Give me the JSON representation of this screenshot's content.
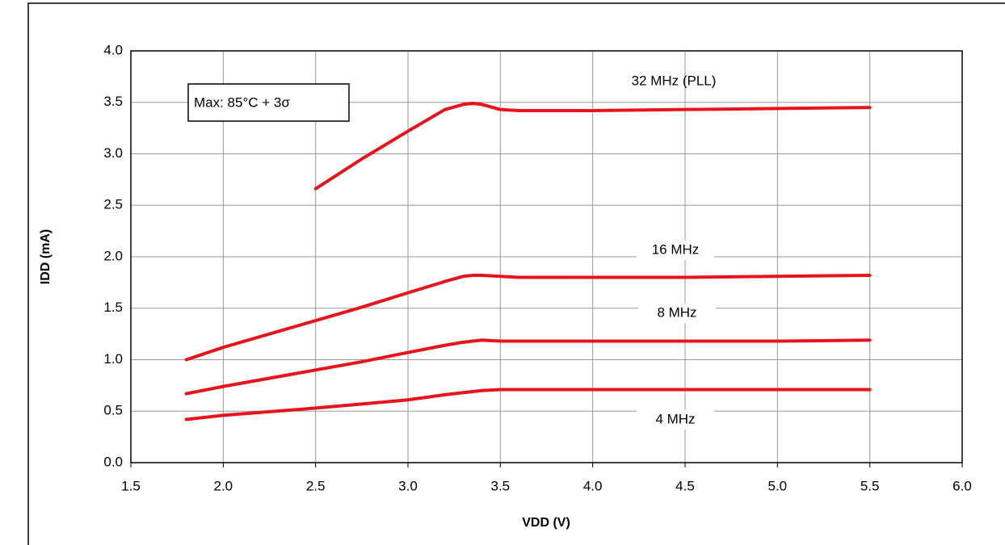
{
  "chart_data": {
    "type": "line",
    "annotation": "Max: 85°C + 3σ",
    "x_label": "VDD (V)",
    "y_label": "IDD (mA)",
    "x": [
      1.8,
      2.0,
      2.5,
      2.75,
      3.0,
      3.2,
      3.3,
      3.35,
      3.4,
      3.5,
      3.6,
      4.0,
      4.5,
      5.0,
      5.5
    ],
    "series": [
      {
        "name": "32 MHz (PLL)",
        "color": "#e8141c",
        "values": [
          null,
          null,
          2.66,
          2.95,
          3.22,
          3.43,
          3.48,
          3.49,
          3.48,
          3.43,
          3.42,
          3.42,
          3.43,
          3.44,
          3.45
        ]
      },
      {
        "name": "16 MHz",
        "color": "#e8141c",
        "values": [
          1.0,
          1.12,
          1.38,
          1.51,
          1.65,
          1.76,
          1.81,
          1.82,
          1.82,
          1.81,
          1.8,
          1.8,
          1.8,
          1.81,
          1.82
        ]
      },
      {
        "name": "8 MHz",
        "color": "#e8141c",
        "values": [
          0.67,
          0.74,
          0.9,
          0.98,
          1.07,
          1.14,
          1.17,
          1.18,
          1.19,
          1.18,
          1.18,
          1.18,
          1.18,
          1.18,
          1.19
        ]
      },
      {
        "name": "4 MHz",
        "color": "#e8141c",
        "values": [
          0.42,
          0.46,
          0.53,
          0.57,
          0.61,
          0.66,
          0.68,
          0.69,
          0.7,
          0.71,
          0.71,
          0.71,
          0.71,
          0.71,
          0.71
        ]
      }
    ],
    "xlim": [
      1.5,
      6.0
    ],
    "xticks": [
      1.5,
      {
        "value": 2,
        "label": "2.0"
      },
      2.5,
      {
        "value": 3,
        "label": "3.0"
      },
      3.5,
      {
        "value": 4,
        "label": "4.0"
      },
      4.5,
      {
        "value": 5,
        "label": "5.0"
      },
      5.5,
      {
        "value": 6,
        "label": "6.0"
      }
    ],
    "ylim": [
      0,
      4
    ],
    "yticks": [
      {
        "value": 0,
        "label": "0.0"
      },
      0.5,
      {
        "value": 1,
        "label": "1.0"
      },
      1.5,
      {
        "value": 2,
        "label": "2.0"
      },
      2.5,
      {
        "value": 3,
        "label": "3.0"
      },
      3.5,
      {
        "value": 4,
        "label": "4.0"
      }
    ],
    "grid": true
  }
}
